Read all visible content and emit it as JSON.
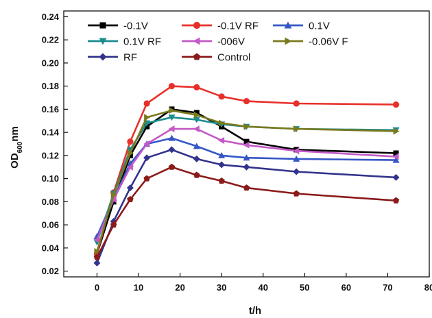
{
  "chart_data": {
    "type": "line",
    "xlabel": "t/h",
    "ylabel": {
      "main": "OD",
      "sub": "600",
      "unit": "nm"
    },
    "xlim": [
      -8,
      80
    ],
    "ylim": [
      0.015,
      0.245
    ],
    "xticks": [
      0,
      10,
      20,
      30,
      40,
      50,
      60,
      70,
      80
    ],
    "xtick_labels": [
      "0",
      "10",
      "20",
      "30",
      "40",
      "50",
      "60",
      "70",
      "80"
    ],
    "yticks": [
      0.02,
      0.04,
      0.06,
      0.08,
      0.1,
      0.12,
      0.14,
      0.16,
      0.18,
      0.2,
      0.22,
      0.24
    ],
    "ytick_labels": [
      "0.02",
      "0.04",
      "0.06",
      "0.08",
      "0.10",
      "0.12",
      "0.14",
      "0.16",
      "0.18",
      "0.20",
      "0.22",
      "0.24"
    ],
    "grid": false,
    "legend_position": "top-left",
    "x": [
      0,
      4,
      8,
      12,
      18,
      24,
      30,
      36,
      48,
      72
    ],
    "series": [
      {
        "name": "-0.1V",
        "color": "#000000",
        "marker": "square",
        "values": [
          0.035,
          0.08,
          0.12,
          0.145,
          0.16,
          0.157,
          0.145,
          0.132,
          0.125,
          0.122
        ]
      },
      {
        "name": "-0.1V RF",
        "color": "#e8302a",
        "marker": "circle",
        "values": [
          0.035,
          0.088,
          0.132,
          0.165,
          0.18,
          0.179,
          0.171,
          0.167,
          0.165,
          0.164
        ]
      },
      {
        "name": "0.1V",
        "color": "#3557c6",
        "marker": "triangle-up",
        "values": [
          0.05,
          0.083,
          0.113,
          0.13,
          0.135,
          0.128,
          0.12,
          0.118,
          0.117,
          0.116
        ]
      },
      {
        "name": "0.1V RF",
        "color": "#1a8c8c",
        "marker": "triangle-down",
        "values": [
          0.045,
          0.087,
          0.125,
          0.148,
          0.153,
          0.151,
          0.147,
          0.145,
          0.143,
          0.142
        ]
      },
      {
        "name": "-006V",
        "color": "#c35ac8",
        "marker": "triangle-left",
        "values": [
          0.047,
          0.082,
          0.11,
          0.13,
          0.143,
          0.143,
          0.133,
          0.129,
          0.124,
          0.119
        ]
      },
      {
        "name": "-0.06V F",
        "color": "#7a7a1e",
        "marker": "triangle-right",
        "values": [
          0.037,
          0.086,
          0.122,
          0.153,
          0.159,
          0.155,
          0.148,
          0.145,
          0.143,
          0.141
        ]
      },
      {
        "name": "RF",
        "color": "#32338c",
        "marker": "diamond",
        "values": [
          0.027,
          0.063,
          0.092,
          0.118,
          0.125,
          0.117,
          0.112,
          0.11,
          0.106,
          0.101
        ]
      },
      {
        "name": "Control",
        "color": "#8b1a1a",
        "marker": "pentagon",
        "values": [
          0.032,
          0.06,
          0.082,
          0.1,
          0.11,
          0.103,
          0.098,
          0.092,
          0.087,
          0.081
        ]
      }
    ]
  }
}
